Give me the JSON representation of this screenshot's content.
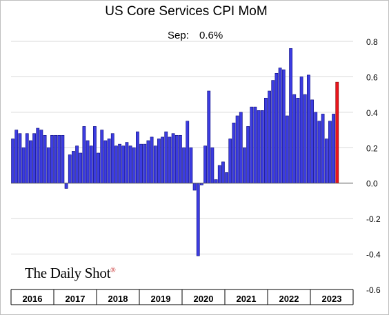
{
  "chart_data": {
    "type": "bar",
    "title": "US Core Services CPI MoM",
    "annotation": {
      "label": "Sep:",
      "value": "0.6%"
    },
    "ylim": [
      -0.6,
      0.8
    ],
    "yticks": [
      "0.8",
      "0.6",
      "0.4",
      "0.2",
      "0.0",
      "-0.2",
      "-0.4",
      "-0.6"
    ],
    "ytick_values": [
      0.8,
      0.6,
      0.4,
      0.2,
      0.0,
      -0.2,
      -0.4,
      -0.6
    ],
    "year_labels": [
      "2016",
      "2017",
      "2018",
      "2019",
      "2020",
      "2021",
      "2022",
      "2023"
    ],
    "x_start": "2016-01",
    "grid": true,
    "colors": {
      "bar": "#3c3ce0",
      "bar_edge": "#0a0a7a",
      "highlight": "#e8141c",
      "highlight_edge": "#8a0000"
    },
    "highlight_last": true,
    "values": [
      0.25,
      0.3,
      0.28,
      0.2,
      0.28,
      0.24,
      0.28,
      0.31,
      0.3,
      0.27,
      0.2,
      0.27,
      0.27,
      0.27,
      0.27,
      -0.03,
      0.16,
      0.18,
      0.21,
      0.17,
      0.32,
      0.24,
      0.21,
      0.32,
      0.17,
      0.3,
      0.24,
      0.25,
      0.28,
      0.21,
      0.22,
      0.21,
      0.23,
      0.21,
      0.2,
      0.29,
      0.22,
      0.22,
      0.24,
      0.26,
      0.21,
      0.25,
      0.26,
      0.29,
      0.26,
      0.28,
      0.27,
      0.27,
      0.2,
      0.35,
      0.2,
      -0.04,
      -0.41,
      -0.01,
      0.21,
      0.52,
      0.2,
      0.02,
      0.1,
      0.12,
      0.06,
      0.25,
      0.34,
      0.38,
      0.4,
      0.2,
      0.32,
      0.43,
      0.43,
      0.41,
      0.41,
      0.48,
      0.52,
      0.58,
      0.62,
      0.65,
      0.64,
      0.38,
      0.76,
      0.5,
      0.48,
      0.6,
      0.5,
      0.61,
      0.47,
      0.4,
      0.35,
      0.39,
      0.25,
      0.35,
      0.39,
      0.57
    ]
  },
  "brand": {
    "logo_text": "The Daily Shot",
    "logo_mark": "®"
  }
}
